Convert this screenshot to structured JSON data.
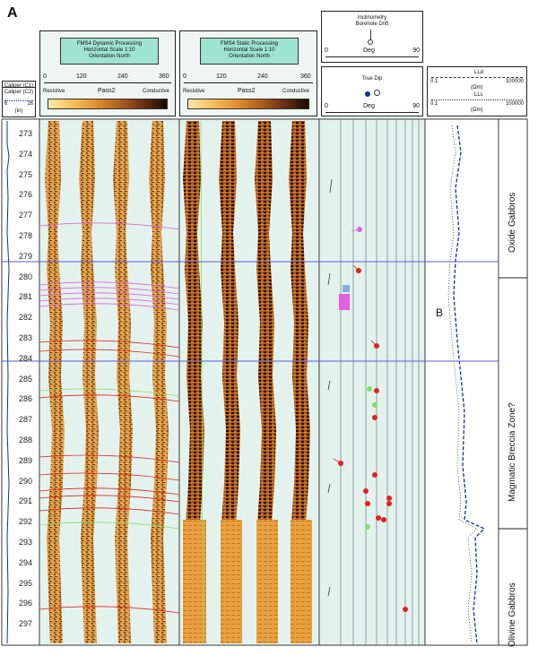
{
  "figure_letter": "A",
  "caliper": {
    "c1_title": "Caliper (C1)",
    "c2_title": "Caliper (C2)",
    "min": "6",
    "max": "16",
    "unit": "(in)"
  },
  "fms_dynamic": {
    "title1": "FMS4 Dynamic Processing",
    "title2": "Horizontal Scale 1:10",
    "title3": "Orientation North",
    "ticks": [
      "0",
      "120",
      "240",
      "360"
    ],
    "left_label": "Resistive",
    "mid_label": "Pass2",
    "right_label": "Conductive"
  },
  "fms_static": {
    "title1": "FMS4 Static Processing",
    "title2": "Horizontal Scale 1:10",
    "title3": "Orientation North",
    "ticks": [
      "0",
      "120",
      "240",
      "360"
    ],
    "left_label": "Resistive",
    "mid_label": "Pass2",
    "right_label": "Conductive"
  },
  "inclinometry": {
    "title1": "Inclinometry",
    "title2": "Borehole Drift",
    "min": "0",
    "unit": "Deg",
    "max": "90"
  },
  "true_dip": {
    "title": "True Dip",
    "min": "0",
    "unit": "Deg",
    "max": "90"
  },
  "resistivity": {
    "lld_label": "LLd",
    "lls_label": "LLs",
    "min": "0.1",
    "max": "100000",
    "unit": "(Ωm)"
  },
  "depths": [
    "273",
    "274",
    "275",
    "276",
    "277",
    "278",
    "279",
    "280",
    "281",
    "282",
    "283",
    "284",
    "285",
    "286",
    "287",
    "288",
    "289",
    "290",
    "291",
    "292",
    "293",
    "294",
    "295",
    "296",
    "297"
  ],
  "zone_labels": {
    "oxide": "Oxide Gabbros",
    "breccia": "Magmatic Breccia Zone?",
    "olivine": "Olivine Gabbros",
    "marker_b": "B"
  },
  "colors": {
    "panel_bg": "#9fe4cf",
    "image_bg": "#e4f2ee",
    "boundary_line": "#5a5adc",
    "dip_red": "#e02020",
    "dip_magenta": "#e060e0",
    "dip_green": "#80e060",
    "curve_blue": "#1030a0"
  }
}
